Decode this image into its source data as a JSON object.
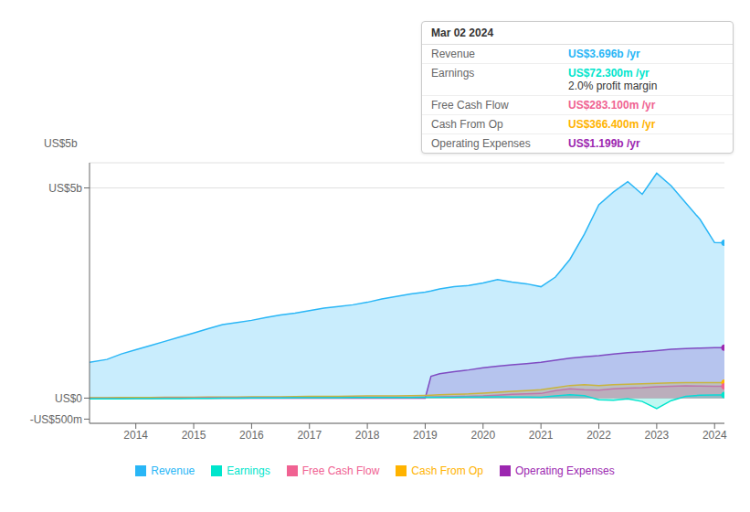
{
  "chart_data": {
    "type": "area",
    "x": [
      2013.2,
      2013.5,
      2013.75,
      2014.0,
      2014.25,
      2014.5,
      2014.75,
      2015.0,
      2015.25,
      2015.5,
      2015.75,
      2016.0,
      2016.25,
      2016.5,
      2016.75,
      2017.0,
      2017.25,
      2017.5,
      2017.75,
      2018.0,
      2018.25,
      2018.5,
      2018.75,
      2019.0,
      2019.1,
      2019.25,
      2019.5,
      2019.75,
      2020.0,
      2020.25,
      2020.5,
      2020.75,
      2021.0,
      2021.25,
      2021.5,
      2021.75,
      2022.0,
      2022.25,
      2022.5,
      2022.75,
      2023.0,
      2023.25,
      2023.5,
      2023.75,
      2024.0,
      2024.17
    ],
    "series": [
      {
        "name": "Revenue",
        "color": "#29b6f6",
        "values": [
          0.85,
          0.92,
          1.05,
          1.15,
          1.25,
          1.35,
          1.45,
          1.55,
          1.65,
          1.75,
          1.8,
          1.85,
          1.92,
          1.98,
          2.02,
          2.08,
          2.14,
          2.18,
          2.22,
          2.28,
          2.36,
          2.42,
          2.48,
          2.52,
          2.55,
          2.6,
          2.65,
          2.68,
          2.74,
          2.82,
          2.76,
          2.72,
          2.65,
          2.88,
          3.3,
          3.9,
          4.6,
          4.9,
          5.15,
          4.85,
          5.35,
          5.05,
          4.65,
          4.25,
          3.7,
          3.696
        ]
      },
      {
        "name": "Earnings",
        "color": "#00e5cc",
        "values": [
          -0.02,
          -0.02,
          -0.02,
          -0.015,
          -0.015,
          -0.01,
          -0.01,
          -0.005,
          -0.005,
          0.0,
          0.0,
          0.005,
          0.005,
          0.005,
          0.008,
          0.008,
          0.01,
          0.01,
          0.012,
          0.012,
          0.015,
          0.015,
          0.015,
          0.018,
          0.018,
          0.02,
          0.022,
          0.025,
          0.028,
          0.03,
          0.028,
          0.025,
          0.022,
          0.05,
          0.08,
          0.06,
          -0.04,
          -0.05,
          -0.02,
          -0.08,
          -0.25,
          -0.06,
          0.04,
          0.07,
          0.0723,
          0.0723
        ]
      },
      {
        "name": "Free Cash Flow",
        "color": "#f06292",
        "values": [
          -0.005,
          -0.005,
          -0.005,
          -0.005,
          -0.005,
          0.005,
          0.005,
          0.005,
          0.01,
          0.01,
          0.01,
          0.012,
          0.012,
          0.012,
          0.015,
          0.015,
          0.015,
          0.015,
          0.018,
          0.018,
          0.02,
          0.02,
          0.02,
          0.025,
          0.025,
          0.03,
          0.035,
          0.04,
          0.05,
          0.07,
          0.09,
          0.1,
          0.11,
          0.18,
          0.22,
          0.2,
          0.19,
          0.22,
          0.24,
          0.25,
          0.27,
          0.28,
          0.29,
          0.285,
          0.2831,
          0.2831
        ]
      },
      {
        "name": "Cash From Op",
        "color": "#ffb300",
        "values": [
          0.01,
          0.01,
          0.015,
          0.015,
          0.015,
          0.02,
          0.02,
          0.02,
          0.025,
          0.025,
          0.025,
          0.03,
          0.03,
          0.03,
          0.035,
          0.04,
          0.04,
          0.04,
          0.045,
          0.05,
          0.05,
          0.055,
          0.06,
          0.065,
          0.07,
          0.08,
          0.09,
          0.1,
          0.12,
          0.14,
          0.16,
          0.18,
          0.2,
          0.25,
          0.3,
          0.32,
          0.3,
          0.32,
          0.33,
          0.34,
          0.35,
          0.36,
          0.37,
          0.37,
          0.3664,
          0.3664
        ]
      },
      {
        "name": "Operating Expenses",
        "color": "#9c27b0",
        "values": [
          0.0,
          0.0,
          0.0,
          0.0,
          0.0,
          0.0,
          0.0,
          0.0,
          0.0,
          0.0,
          0.0,
          0.0,
          0.0,
          0.0,
          0.0,
          0.0,
          0.0,
          0.0,
          0.0,
          0.0,
          0.0,
          0.0,
          0.0,
          0.0,
          0.52,
          0.58,
          0.63,
          0.67,
          0.72,
          0.76,
          0.79,
          0.82,
          0.85,
          0.9,
          0.95,
          0.98,
          1.01,
          1.05,
          1.08,
          1.1,
          1.13,
          1.16,
          1.18,
          1.19,
          1.199,
          1.199
        ]
      }
    ],
    "xlim": [
      2013.2,
      2024.17
    ],
    "xticks": [
      2014,
      2015,
      2016,
      2017,
      2018,
      2019,
      2020,
      2021,
      2022,
      2023,
      2024
    ],
    "ylim": [
      -0.6,
      5.6
    ],
    "yticks": [
      {
        "value": -0.5,
        "label": "-US$500m"
      },
      {
        "value": 0.0,
        "label": "US$0"
      },
      {
        "value": 5.0,
        "label": "US$5b"
      }
    ],
    "grid": true,
    "annotations": [
      {
        "text": "US$5b"
      },
      {
        "title": "Mar 02 2024",
        "rows": [
          {
            "label": "Revenue",
            "text": "US$3.696b /yr",
            "color": "#29b6f6"
          },
          {
            "label": "Earnings",
            "text": "US$72.300m /yr",
            "color": "#00e5cc",
            "sub": "2.0% profit margin"
          },
          {
            "label": "Free Cash Flow",
            "text": "US$283.100m /yr",
            "color": "#f06292"
          },
          {
            "label": "Cash From Op",
            "text": "US$366.400m /yr",
            "color": "#ffb300"
          },
          {
            "label": "Operating Expenses",
            "text": "US$1.199b /yr",
            "color": "#9c27b0"
          }
        ]
      }
    ]
  }
}
